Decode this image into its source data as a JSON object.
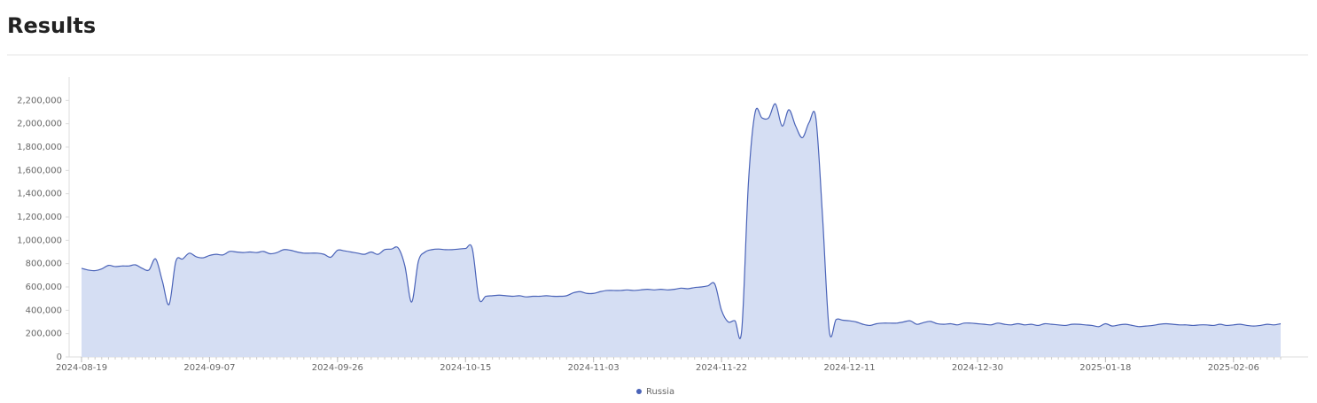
{
  "chart_data": {
    "type": "area",
    "title": "Results",
    "x": [
      "2024-08-19",
      "2024-08-20",
      "2024-08-21",
      "2024-08-22",
      "2024-08-23",
      "2024-08-24",
      "2024-08-25",
      "2024-08-26",
      "2024-08-27",
      "2024-08-28",
      "2024-08-29",
      "2024-08-30",
      "2024-08-31",
      "2024-09-01",
      "2024-09-02",
      "2024-09-03",
      "2024-09-04",
      "2024-09-05",
      "2024-09-06",
      "2024-09-07",
      "2024-09-08",
      "2024-09-09",
      "2024-09-10",
      "2024-09-11",
      "2024-09-12",
      "2024-09-13",
      "2024-09-14",
      "2024-09-15",
      "2024-09-16",
      "2024-09-17",
      "2024-09-18",
      "2024-09-19",
      "2024-09-20",
      "2024-09-21",
      "2024-09-22",
      "2024-09-23",
      "2024-09-24",
      "2024-09-25",
      "2024-09-26",
      "2024-09-27",
      "2024-09-28",
      "2024-09-29",
      "2024-09-30",
      "2024-10-01",
      "2024-10-02",
      "2024-10-03",
      "2024-10-04",
      "2024-10-05",
      "2024-10-06",
      "2024-10-07",
      "2024-10-08",
      "2024-10-09",
      "2024-10-10",
      "2024-10-11",
      "2024-10-12",
      "2024-10-13",
      "2024-10-14",
      "2024-10-15",
      "2024-10-16",
      "2024-10-17",
      "2024-10-18",
      "2024-10-19",
      "2024-10-20",
      "2024-10-21",
      "2024-10-22",
      "2024-10-23",
      "2024-10-24",
      "2024-10-25",
      "2024-10-26",
      "2024-10-27",
      "2024-10-28",
      "2024-10-29",
      "2024-10-30",
      "2024-10-31",
      "2024-11-01",
      "2024-11-02",
      "2024-11-03",
      "2024-11-04",
      "2024-11-05",
      "2024-11-06",
      "2024-11-07",
      "2024-11-08",
      "2024-11-09",
      "2024-11-10",
      "2024-11-11",
      "2024-11-12",
      "2024-11-13",
      "2024-11-14",
      "2024-11-15",
      "2024-11-16",
      "2024-11-17",
      "2024-11-18",
      "2024-11-19",
      "2024-11-20",
      "2024-11-21",
      "2024-11-22",
      "2024-11-23",
      "2024-11-24",
      "2024-11-25",
      "2024-11-26",
      "2024-11-27",
      "2024-11-28",
      "2024-11-29",
      "2024-11-30",
      "2024-12-01",
      "2024-12-02",
      "2024-12-03",
      "2024-12-04",
      "2024-12-05",
      "2024-12-06",
      "2024-12-07",
      "2024-12-08",
      "2024-12-09",
      "2024-12-10",
      "2024-12-11",
      "2024-12-12",
      "2024-12-13",
      "2024-12-14",
      "2024-12-15",
      "2024-12-16",
      "2024-12-17",
      "2024-12-18",
      "2024-12-19",
      "2024-12-20",
      "2024-12-21",
      "2024-12-22",
      "2024-12-23",
      "2024-12-24",
      "2024-12-25",
      "2024-12-26",
      "2024-12-27",
      "2024-12-28",
      "2024-12-29",
      "2024-12-30",
      "2024-12-31",
      "2025-01-01",
      "2025-01-02",
      "2025-01-03",
      "2025-01-04",
      "2025-01-05",
      "2025-01-06",
      "2025-01-07",
      "2025-01-08",
      "2025-01-09",
      "2025-01-10",
      "2025-01-11",
      "2025-01-12",
      "2025-01-13",
      "2025-01-14",
      "2025-01-15",
      "2025-01-16",
      "2025-01-17",
      "2025-01-18",
      "2025-01-19",
      "2025-01-20",
      "2025-01-21",
      "2025-01-22",
      "2025-01-23",
      "2025-01-24",
      "2025-01-25",
      "2025-01-26",
      "2025-01-27",
      "2025-01-28",
      "2025-01-29",
      "2025-01-30",
      "2025-01-31",
      "2025-02-01",
      "2025-02-02",
      "2025-02-03",
      "2025-02-04",
      "2025-02-05",
      "2025-02-06",
      "2025-02-07",
      "2025-02-08",
      "2025-02-09",
      "2025-02-10",
      "2025-02-11",
      "2025-02-12",
      "2025-02-13"
    ],
    "series": [
      {
        "name": "Russia",
        "color": "#4a63b8",
        "fill": "#d5def3",
        "values": [
          760000,
          745000,
          740000,
          755000,
          785000,
          775000,
          780000,
          780000,
          790000,
          760000,
          745000,
          840000,
          650000,
          450000,
          820000,
          840000,
          890000,
          860000,
          850000,
          870000,
          880000,
          875000,
          905000,
          900000,
          895000,
          900000,
          895000,
          905000,
          885000,
          895000,
          920000,
          915000,
          900000,
          890000,
          890000,
          890000,
          880000,
          855000,
          915000,
          910000,
          900000,
          890000,
          880000,
          900000,
          880000,
          920000,
          925000,
          935000,
          780000,
          470000,
          820000,
          900000,
          920000,
          925000,
          920000,
          920000,
          925000,
          930000,
          930000,
          500000,
          520000,
          525000,
          530000,
          525000,
          520000,
          525000,
          515000,
          520000,
          520000,
          525000,
          520000,
          520000,
          525000,
          550000,
          560000,
          545000,
          545000,
          560000,
          570000,
          570000,
          570000,
          575000,
          570000,
          575000,
          580000,
          575000,
          580000,
          575000,
          580000,
          590000,
          585000,
          595000,
          600000,
          610000,
          625000,
          400000,
          300000,
          310000,
          230000,
          1500000,
          2100000,
          2050000,
          2050000,
          2170000,
          1980000,
          2120000,
          1980000,
          1880000,
          2010000,
          2050000,
          1200000,
          220000,
          320000,
          315000,
          310000,
          300000,
          280000,
          270000,
          285000,
          290000,
          290000,
          290000,
          300000,
          310000,
          280000,
          295000,
          305000,
          285000,
          280000,
          285000,
          275000,
          290000,
          290000,
          285000,
          280000,
          275000,
          290000,
          280000,
          275000,
          285000,
          275000,
          280000,
          270000,
          285000,
          280000,
          275000,
          270000,
          280000,
          280000,
          275000,
          270000,
          260000,
          285000,
          265000,
          275000,
          280000,
          270000,
          260000,
          265000,
          270000,
          280000,
          285000,
          280000,
          275000,
          275000,
          270000,
          275000,
          275000,
          270000,
          280000,
          270000,
          275000,
          280000,
          270000,
          265000,
          270000,
          280000,
          275000,
          285000
        ]
      }
    ],
    "xticks": [
      "2024-08-19",
      "2024-09-07",
      "2024-09-26",
      "2024-10-15",
      "2024-11-03",
      "2024-11-22",
      "2024-12-11",
      "2024-12-30",
      "2025-01-18",
      "2025-02-06"
    ],
    "ylim": [
      0,
      2400000
    ],
    "yticks": [
      0,
      {
        "value": 200000,
        "label": "200,000"
      },
      {
        "value": 400000,
        "label": "400,000"
      },
      {
        "value": 600000,
        "label": "600,000"
      },
      {
        "value": 800000,
        "label": "800,000"
      },
      {
        "value": 1000000,
        "label": "1,000,000"
      },
      {
        "value": 1200000,
        "label": "1,200,000"
      },
      {
        "value": 1400000,
        "label": "1,400,000"
      },
      {
        "value": 1600000,
        "label": "1,600,000"
      },
      {
        "value": 1800000,
        "label": "1,800,000"
      },
      {
        "value": 2000000,
        "label": "2,000,000"
      },
      {
        "value": 2200000,
        "label": "2,200,000"
      }
    ],
    "legend": "bottom"
  }
}
